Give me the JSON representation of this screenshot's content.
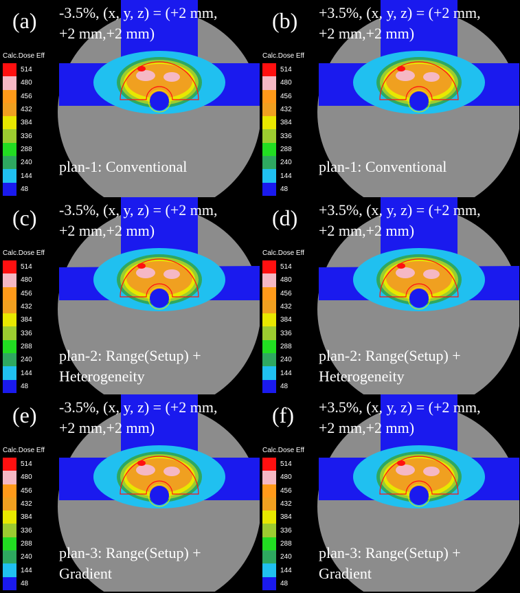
{
  "colorbar": {
    "title": "Calc.Dose Eff",
    "levels": [
      {
        "label": "514",
        "color": "#ff1010"
      },
      {
        "label": "480",
        "color": "#f5b8c4"
      },
      {
        "label": "456",
        "color": "#ff9a1a"
      },
      {
        "label": "432",
        "color": "#f0a020"
      },
      {
        "label": "384",
        "color": "#e8e800"
      },
      {
        "label": "336",
        "color": "#9ccc30"
      },
      {
        "label": "288",
        "color": "#22dd22"
      },
      {
        "label": "240",
        "color": "#2ea860"
      },
      {
        "label": "144",
        "color": "#20c0f0"
      },
      {
        "label": "48",
        "color": "#1a1aee"
      }
    ]
  },
  "panels": [
    {
      "letter": "(a)",
      "condition": "-3.5%, (x, y, z) = (+2 mm,\n+2 mm,+2 mm)",
      "plan": "plan-1: Conventional",
      "plan_top": 228,
      "variant": "narrow"
    },
    {
      "letter": "(b)",
      "condition": "+3.5%, (x, y, z) = (+2 mm,\n+2 mm,+2 mm)",
      "plan": "plan-1: Conventional",
      "plan_top": 228,
      "variant": "narrow"
    },
    {
      "letter": "(c)",
      "condition": "-3.5%, (x, y, z) = (+2 mm,\n+2 mm,+2 mm)",
      "plan": "plan-2: Range(Setup) +\nHeterogeneity",
      "plan_top": 216,
      "variant": "wide"
    },
    {
      "letter": "(d)",
      "condition": "+3.5%, (x, y, z) = (+2 mm,\n+2 mm,+2 mm)",
      "plan": "plan-2: Range(Setup) +\nHeterogeneity",
      "plan_top": 216,
      "variant": "wide"
    },
    {
      "letter": "(e)",
      "condition": "-3.5%, (x, y, z) = (+2 mm,\n+2 mm,+2 mm)",
      "plan": "plan-3: Range(Setup) +\nGradient",
      "plan_top": 216,
      "variant": "narrow"
    },
    {
      "letter": "(f)",
      "condition": "+3.5%, (x, y, z) = (+2 mm,\n+2 mm,+2 mm)",
      "plan": "plan-3: Range(Setup) +\nGradient",
      "plan_top": 216,
      "variant": "narrow"
    }
  ]
}
